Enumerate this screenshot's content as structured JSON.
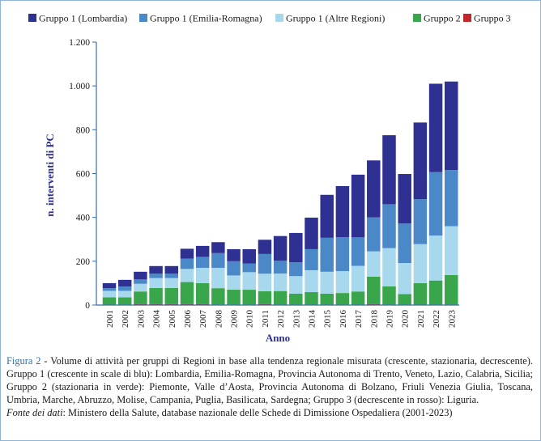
{
  "chart_data": {
    "type": "bar",
    "stacked": true,
    "categories": [
      "2001",
      "2002",
      "2003",
      "2004",
      "2005",
      "2006",
      "2007",
      "2008",
      "2009",
      "2010",
      "2011",
      "2012",
      "2013",
      "2014",
      "2015",
      "2016",
      "2017",
      "2018",
      "2019",
      "2020",
      "2021",
      "2022",
      "2023"
    ],
    "series": [
      {
        "name": "Gruppo 3",
        "color": "#c0282d",
        "values": [
          2,
          2,
          5,
          5,
          5,
          5,
          5,
          2,
          2,
          2,
          5,
          2,
          2,
          2,
          2,
          2,
          2,
          5,
          2,
          2,
          2,
          2,
          2
        ]
      },
      {
        "name": "Gruppo 2",
        "color": "#3aa64b",
        "values": [
          33,
          33,
          57,
          73,
          73,
          100,
          95,
          75,
          68,
          68,
          58,
          62,
          50,
          57,
          50,
          53,
          60,
          125,
          83,
          48,
          98,
          110,
          135
        ]
      },
      {
        "name": "Gruppo 1 (Altre Regioni)",
        "color": "#a8d8ee",
        "values": [
          30,
          30,
          35,
          45,
          45,
          60,
          70,
          93,
          65,
          80,
          80,
          80,
          80,
          100,
          100,
          100,
          117,
          115,
          175,
          142,
          178,
          205,
          223
        ]
      },
      {
        "name": "Gruppo 1 (Emilia-Romagna)",
        "color": "#4a88c7",
        "values": [
          12,
          20,
          20,
          20,
          20,
          47,
          50,
          67,
          65,
          40,
          90,
          58,
          63,
          96,
          155,
          155,
          130,
          155,
          200,
          180,
          205,
          290,
          256
        ]
      },
      {
        "name": "Gruppo 1 (Lombardia)",
        "color": "#2e3192",
        "values": [
          23,
          30,
          35,
          35,
          35,
          45,
          50,
          50,
          55,
          65,
          65,
          113,
          134,
          144,
          196,
          233,
          286,
          260,
          315,
          226,
          350,
          403,
          404
        ]
      }
    ],
    "legend_order": [
      "Gruppo 1 (Lombardia)",
      "Gruppo 1 (Emilia-Romagna)",
      "Gruppo 1 (Altre Regioni)",
      "Gruppo 2",
      "Gruppo 3"
    ],
    "ylim": [
      0,
      1200
    ],
    "yticks": [
      0,
      200,
      400,
      600,
      800,
      1000,
      1200
    ],
    "ytick_labels": [
      "0",
      "200",
      "400",
      "600",
      "800",
      "1.000",
      "1.200"
    ],
    "xlabel": "Anno",
    "ylabel": "n. interventi di PC",
    "grid": false,
    "legend_position": "top"
  },
  "caption": {
    "figure_label": "Figura 2",
    "figure_text": " - Volume di attività per gruppi di Regioni in base alla tendenza regionale misurata (crescente, stazionaria, decrescente). Gruppo 1 (crescente in scale di blu): Lombardia, Emilia-Romagna, Provincia Autonoma di Trento, Veneto, Lazio, Calabria, Sicilia; Gruppo 2 (stazionaria in verde): Piemonte, Valle d’Aosta, Provincia Autonoma di Bolzano, Friuli Venezia Giulia, Toscana, Umbria, Marche, Abruzzo, Molise, Campania, Puglia, Basilicata, Sardegna; Gruppo 3 (decrescente in rosso): Liguria.",
    "source_label": "Fonte dei dati",
    "source_text": ": Ministero della Salute, database nazionale delle Schede di Dimissione Ospedaliera (2001-2023)"
  }
}
